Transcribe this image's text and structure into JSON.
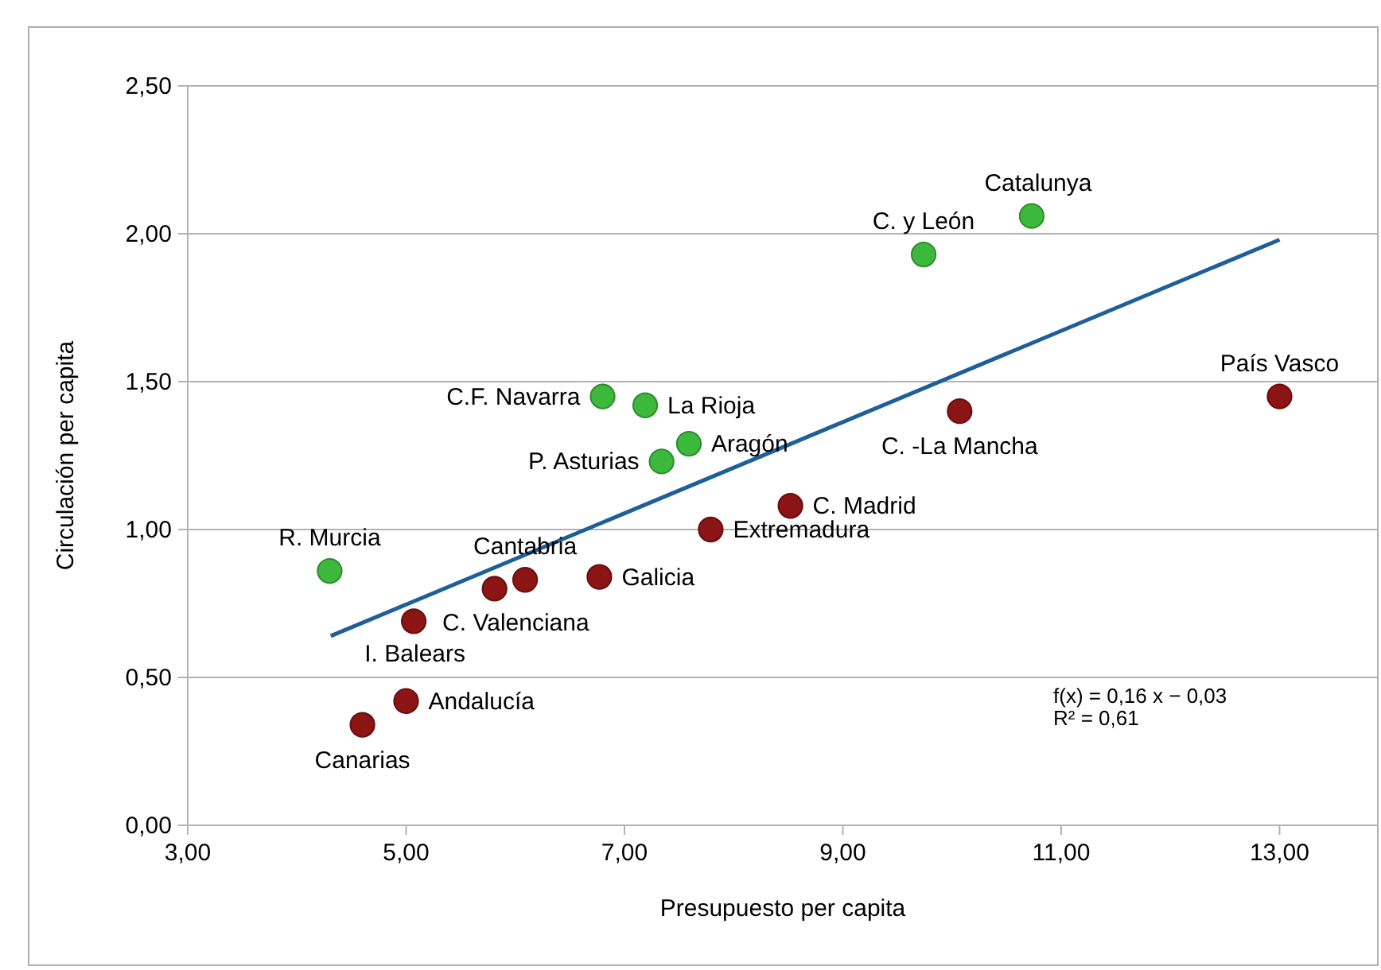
{
  "chart_data": {
    "type": "scatter",
    "xlabel": "Presupuesto per capita",
    "ylabel": "Circulación per capita",
    "xlim": [
      3,
      13.9
    ],
    "ylim": [
      0,
      2.5
    ],
    "xticks": [
      {
        "value": 3,
        "label": "3,00"
      },
      {
        "value": 5,
        "label": "5,00"
      },
      {
        "value": 7,
        "label": "7,00"
      },
      {
        "value": 9,
        "label": "9,00"
      },
      {
        "value": 11,
        "label": "11,00"
      },
      {
        "value": 13,
        "label": "13,00"
      }
    ],
    "yticks": [
      {
        "value": 0,
        "label": "0,00"
      },
      {
        "value": 0.5,
        "label": "0,50"
      },
      {
        "value": 1,
        "label": "1,00"
      },
      {
        "value": 1.5,
        "label": "1,50"
      },
      {
        "value": 2,
        "label": "2,00"
      },
      {
        "value": 2.5,
        "label": "2,50"
      }
    ],
    "grid": "y",
    "series": [
      {
        "color": "#3cb93c",
        "marker": "circle",
        "x": [
          4.3,
          6.8,
          7.19,
          7.34,
          7.59,
          9.74,
          10.73
        ],
        "values": [
          0.86,
          1.45,
          1.42,
          1.23,
          1.29,
          1.93,
          2.06
        ]
      },
      {
        "color": "#8b1414",
        "marker": "circle",
        "x": [
          4.6,
          5.0,
          5.07,
          5.81,
          6.09,
          6.77,
          7.79,
          8.52,
          10.07,
          13.0
        ],
        "values": [
          0.34,
          0.42,
          0.69,
          0.8,
          0.83,
          0.84,
          1.0,
          1.08,
          1.4,
          1.45
        ]
      },
      {
        "type": "line",
        "color": "#1f5f99",
        "x": [
          4.31,
          13.0
        ],
        "values": [
          0.64,
          1.98
        ]
      }
    ],
    "annotations": [
      {
        "text": "R. Murcia",
        "x": 4.3,
        "y": 0.86
      },
      {
        "text": "Canarias",
        "x": 4.6,
        "y": 0.34
      },
      {
        "text": "Andalucía",
        "x": 5.0,
        "y": 0.42
      },
      {
        "text": "C. Valenciana",
        "x": 5.07,
        "y": 0.69
      },
      {
        "text": "I. Balears",
        "x": 5.81,
        "y": 0.8
      },
      {
        "text": "Cantabria",
        "x": 6.09,
        "y": 0.83
      },
      {
        "text": "Galicia",
        "x": 6.77,
        "y": 0.84
      },
      {
        "text": "Extremadura",
        "x": 7.79,
        "y": 1.0
      },
      {
        "text": "C. Madrid",
        "x": 8.52,
        "y": 1.08
      },
      {
        "text": "C. -La Mancha",
        "x": 10.07,
        "y": 1.4
      },
      {
        "text": "País Vasco",
        "x": 13.0,
        "y": 1.45
      },
      {
        "text": "C.F. Navarra",
        "x": 6.8,
        "y": 1.45
      },
      {
        "text": "La Rioja",
        "x": 7.19,
        "y": 1.42
      },
      {
        "text": "P. Asturias",
        "x": 7.34,
        "y": 1.23
      },
      {
        "text": "Aragón",
        "x": 7.59,
        "y": 1.29
      },
      {
        "text": "C. y León",
        "x": 9.74,
        "y": 1.93
      },
      {
        "text": "Catalunya",
        "x": 10.73,
        "y": 2.06
      },
      "f(x) = 0,16 x − 0,03",
      "R² = 0,61"
    ]
  }
}
